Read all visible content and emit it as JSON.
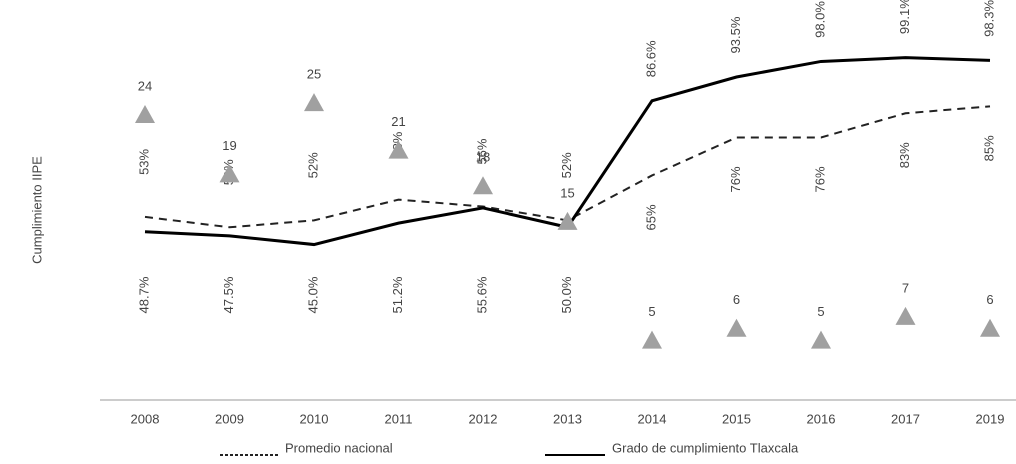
{
  "chart_data": {
    "type": "line",
    "y_label": "Cumplimiento IIPE",
    "categories": [
      "2008",
      "2009",
      "2010",
      "2011",
      "2012",
      "2013",
      "2014",
      "2015",
      "2016",
      "2017",
      "2019"
    ],
    "ylim": [
      0,
      110
    ],
    "y2lim": [
      0,
      32
    ],
    "series": [
      {
        "name": "Promedio nacional",
        "color": "#222222",
        "dashed": true,
        "values": [
          53,
          50,
          52,
          58,
          56,
          52,
          65,
          76,
          76,
          83,
          85
        ],
        "value_labels": [
          "53%",
          "50%",
          "52%",
          "58%",
          "56%",
          "52%",
          "65%",
          "76%",
          "76%",
          "83%",
          "85%"
        ]
      },
      {
        "name": "Grado de cumplimiento  Tlaxcala",
        "color": "#000000",
        "dashed": false,
        "values": [
          48.7,
          47.5,
          45.0,
          51.2,
          55.6,
          50.0,
          86.6,
          93.5,
          98.0,
          99.1,
          98.3
        ],
        "value_labels": [
          "48.7%",
          "47.5%",
          "45.0%",
          "51.2%",
          "55.6%",
          "50.0%",
          "86.6%",
          "93.5%",
          "98.0%",
          "99.1%",
          "98.3%"
        ]
      },
      {
        "type": "scatter",
        "marker": "triangle",
        "axis": "y2",
        "color": "#a0a0a0",
        "values": [
          24,
          19,
          25,
          21,
          18,
          15,
          5,
          6,
          5,
          7,
          6
        ]
      }
    ]
  }
}
